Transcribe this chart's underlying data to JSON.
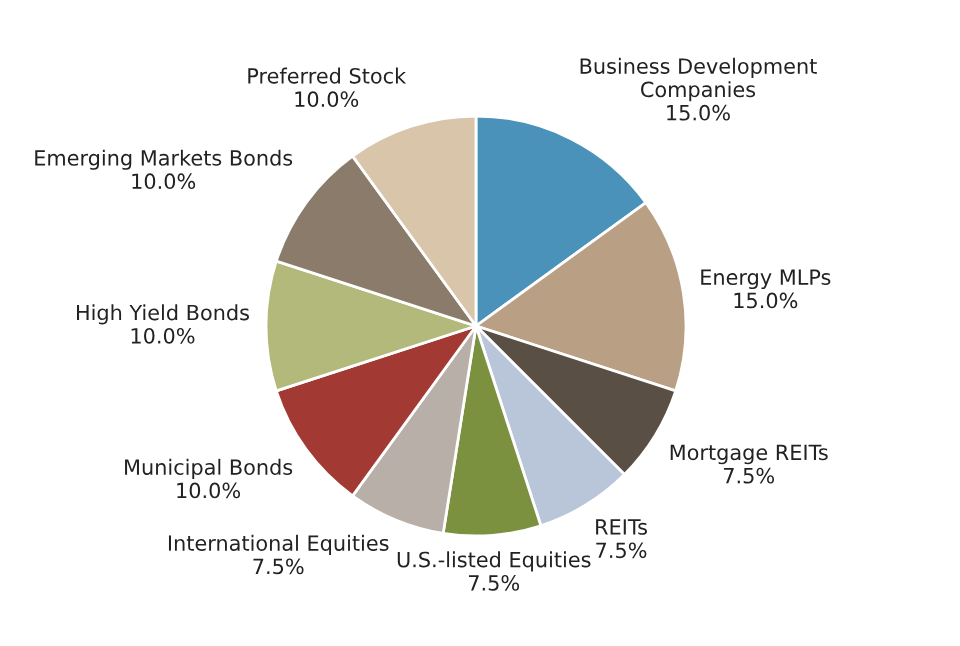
{
  "chart_data": {
    "type": "pie",
    "categories": [
      "Business Development\nCompanies",
      "Energy MLPs",
      "Mortgage REITs",
      "REITs",
      "U.S.-listed Equities",
      "International Equities",
      "Municipal Bonds",
      "High Yield Bonds",
      "Emerging Markets Bonds",
      "Preferred Stock"
    ],
    "values": [
      15.0,
      15.0,
      7.5,
      7.5,
      7.5,
      7.5,
      10.0,
      10.0,
      10.0,
      10.0
    ],
    "value_labels": [
      "15.0%",
      "15.0%",
      "7.5%",
      "7.5%",
      "7.5%",
      "7.5%",
      "10.0%",
      "10.0%",
      "10.0%",
      "10.0%"
    ],
    "colors": [
      "#4a92b9",
      "#b9a085",
      "#5a4f44",
      "#b9c5d9",
      "#7b913f",
      "#b8b0a8",
      "#a23a33",
      "#b2b97a",
      "#8b7b6b",
      "#d9c5aa"
    ],
    "legend": false
  }
}
